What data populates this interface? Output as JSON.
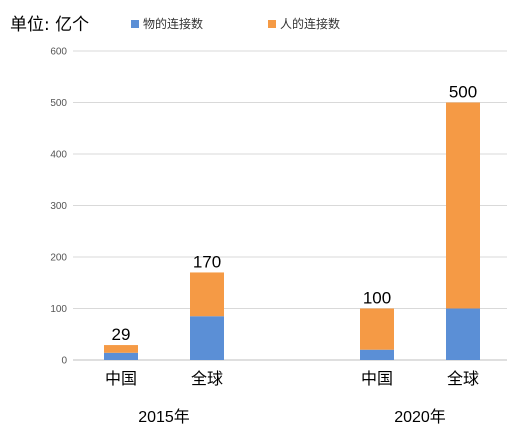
{
  "unit_label": "单位: 亿个",
  "colors": {
    "things": "#5B8FD6",
    "people": "#F59A45",
    "grid": "#d9d9d9",
    "axis": "#bfbfbf"
  },
  "chart_data": {
    "type": "bar",
    "stacked": true,
    "yticks": [
      0,
      100,
      200,
      300,
      400,
      500,
      600
    ],
    "ylim": [
      0,
      600
    ],
    "grid": true,
    "legend": "top",
    "groups": [
      {
        "label": "2015年",
        "categories": [
          "中国",
          "全球"
        ]
      },
      {
        "label": "2020年",
        "categories": [
          "中国",
          "全球"
        ]
      }
    ],
    "categories": [
      "中国",
      "全球",
      "中国",
      "全球"
    ],
    "series": [
      {
        "name": "物的连接数",
        "values": [
          14,
          85,
          20,
          100
        ]
      },
      {
        "name": "人的连接数",
        "values": [
          15,
          85,
          80,
          400
        ]
      }
    ],
    "totals": [
      "29",
      "170",
      "100",
      "500"
    ]
  }
}
